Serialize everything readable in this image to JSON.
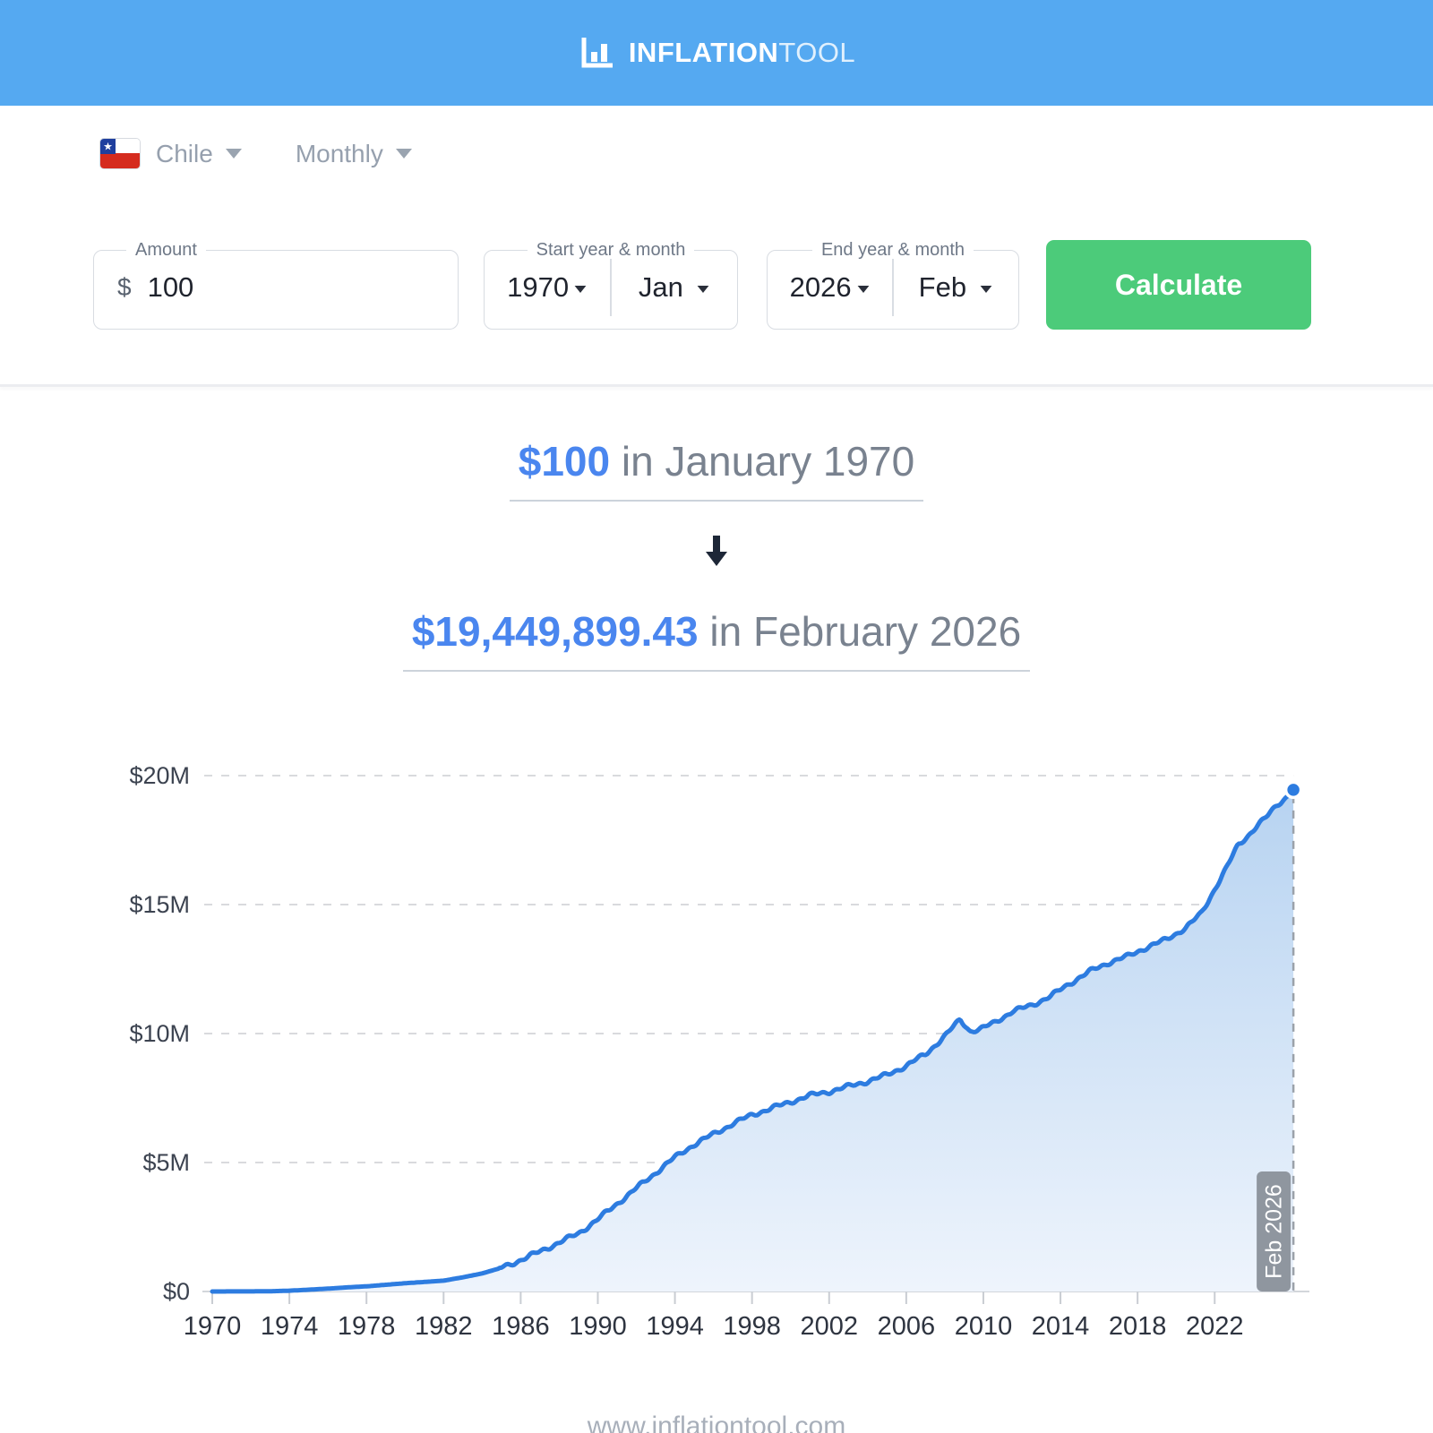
{
  "header": {
    "brand_bold": "INFLATION",
    "brand_light": "TOOL"
  },
  "filters": {
    "country": "Chile",
    "frequency": "Monthly"
  },
  "form": {
    "amount": {
      "label": "Amount",
      "currency_symbol": "$",
      "value": "100"
    },
    "start": {
      "label": "Start year & month",
      "year": "1970",
      "month": "Jan"
    },
    "end": {
      "label": "End year & month",
      "year": "2026",
      "month": "Feb"
    },
    "calculate_label": "Calculate"
  },
  "result": {
    "from_amount": "$100",
    "from_rest": " in January 1970",
    "to_amount": "$19,449,899.43",
    "to_rest": " in February 2026"
  },
  "footer": {
    "url": "www.inflationtool.com"
  },
  "colors": {
    "header_bg": "#55a9f1",
    "accent_blue": "#4a86ef",
    "button_green": "#4ccb7a",
    "chart_line": "#2d7ce0",
    "chart_fill_top": "#b7d3f1",
    "chart_fill_bottom": "#eef4fc",
    "grid_gray": "#d9dadd",
    "axis_gray": "#d3d6db",
    "marker_gray": "#8f969f",
    "flag_blue": "#1f3f9e",
    "flag_red": "#d52b1e"
  },
  "chart_data": {
    "type": "area",
    "title": "",
    "xlabel": "",
    "ylabel": "",
    "axes": {
      "xlim": [
        1970,
        2026.17
      ],
      "ylim": [
        0,
        20
      ],
      "grid": "dashed-horizontal"
    },
    "yticks": [
      {
        "value": 0,
        "label": "$0"
      },
      {
        "value": 5,
        "label": "$5M"
      },
      {
        "value": 10,
        "label": "$10M"
      },
      {
        "value": 15,
        "label": "$15M"
      },
      {
        "value": 20,
        "label": "$20M"
      }
    ],
    "xticks": [
      {
        "value": 1970,
        "label": "1970"
      },
      {
        "value": 1974,
        "label": "1974"
      },
      {
        "value": 1978,
        "label": "1978"
      },
      {
        "value": 1982,
        "label": "1982"
      },
      {
        "value": 1986,
        "label": "1986"
      },
      {
        "value": 1990,
        "label": "1990"
      },
      {
        "value": 1994,
        "label": "1994"
      },
      {
        "value": 1998,
        "label": "1998"
      },
      {
        "value": 2002,
        "label": "2002"
      },
      {
        "value": 2006,
        "label": "2006"
      },
      {
        "value": 2010,
        "label": "2010"
      },
      {
        "value": 2014,
        "label": "2014"
      },
      {
        "value": 2018,
        "label": "2018"
      },
      {
        "value": 2022,
        "label": "2022"
      }
    ],
    "series_control_points": [
      [
        1970.0,
        0.001
      ],
      [
        1971,
        0.002
      ],
      [
        1972,
        0.004
      ],
      [
        1973,
        0.01
      ],
      [
        1974,
        0.03
      ],
      [
        1975,
        0.07
      ],
      [
        1976,
        0.11
      ],
      [
        1977,
        0.16
      ],
      [
        1978,
        0.2
      ],
      [
        1979,
        0.26
      ],
      [
        1980,
        0.32
      ],
      [
        1981,
        0.37
      ],
      [
        1982,
        0.42
      ],
      [
        1983,
        0.55
      ],
      [
        1984,
        0.7
      ],
      [
        1985,
        0.92
      ],
      [
        1986,
        1.22
      ],
      [
        1987,
        1.55
      ],
      [
        1988,
        1.9
      ],
      [
        1989,
        2.25
      ],
      [
        1990,
        2.8
      ],
      [
        1991,
        3.4
      ],
      [
        1992,
        4.0
      ],
      [
        1993,
        4.6
      ],
      [
        1994,
        5.2
      ],
      [
        1995,
        5.7
      ],
      [
        1996,
        6.1
      ],
      [
        1997,
        6.5
      ],
      [
        1998,
        6.85
      ],
      [
        1999,
        7.1
      ],
      [
        2000,
        7.35
      ],
      [
        2001,
        7.6
      ],
      [
        2002,
        7.75
      ],
      [
        2003,
        7.95
      ],
      [
        2004,
        8.15
      ],
      [
        2005,
        8.4
      ],
      [
        2006,
        8.75
      ],
      [
        2007,
        9.2
      ],
      [
        2008,
        9.9
      ],
      [
        2008.8,
        10.55
      ],
      [
        2009.3,
        10.1
      ],
      [
        2009.8,
        10.15
      ],
      [
        2010.5,
        10.4
      ],
      [
        2011.5,
        10.85
      ],
      [
        2012.5,
        11.1
      ],
      [
        2013.5,
        11.45
      ],
      [
        2014.5,
        11.95
      ],
      [
        2015.5,
        12.4
      ],
      [
        2016.5,
        12.75
      ],
      [
        2017.5,
        13.0
      ],
      [
        2018.5,
        13.35
      ],
      [
        2019.5,
        13.65
      ],
      [
        2020.5,
        14.1
      ],
      [
        2021.3,
        14.65
      ],
      [
        2022.0,
        15.6
      ],
      [
        2022.6,
        16.4
      ],
      [
        2023.2,
        17.3
      ],
      [
        2023.7,
        17.65
      ],
      [
        2024.2,
        18.05
      ],
      [
        2024.7,
        18.4
      ],
      [
        2025.2,
        18.85
      ],
      [
        2025.7,
        19.15
      ],
      [
        2026.083,
        19.4499
      ]
    ],
    "end_marker": {
      "label": "Feb 2026",
      "x": 2026.083,
      "y": 19.4499
    }
  }
}
